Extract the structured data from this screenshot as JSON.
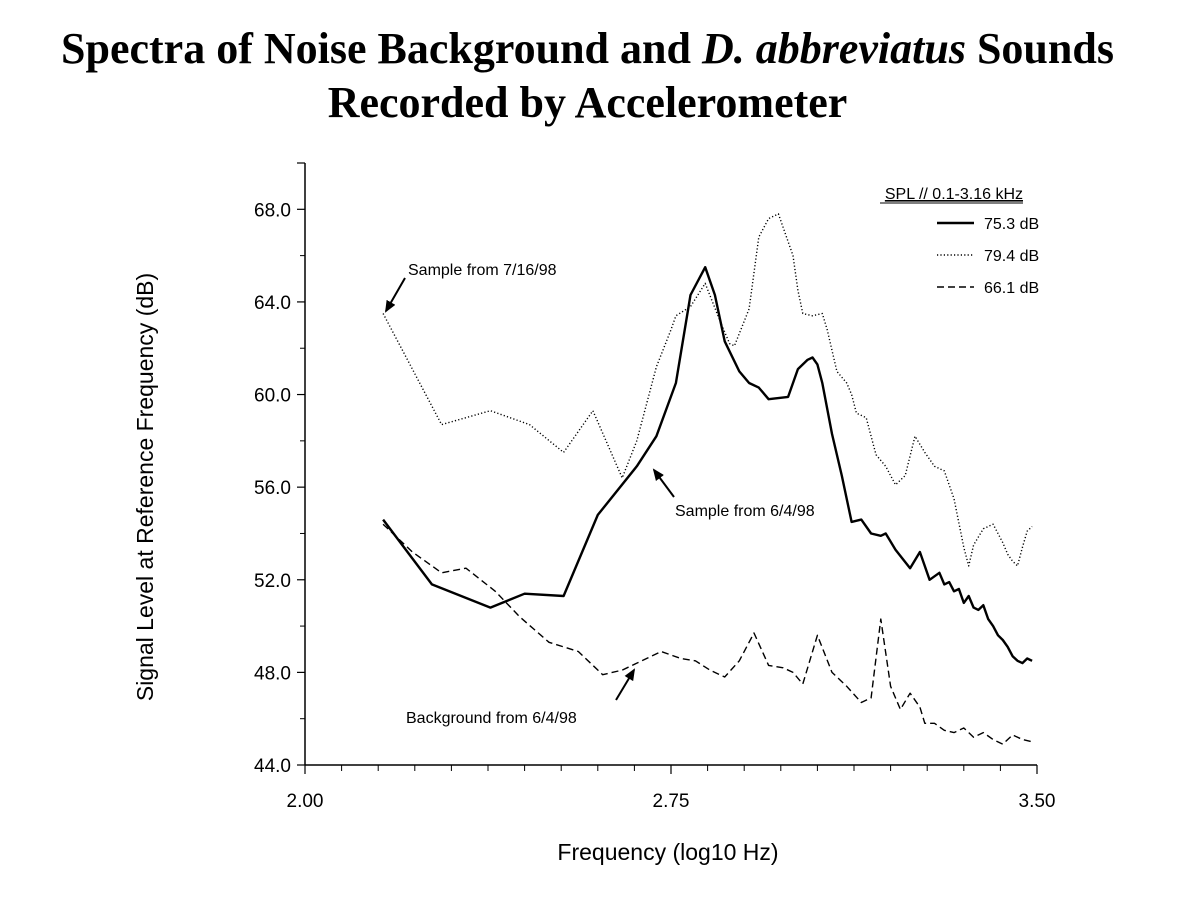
{
  "chart_data": {
    "type": "line",
    "title_part1": "Spectra of Noise Background and ",
    "title_species": "D. abbreviatus",
    "title_part2": " Sounds",
    "title_line2": "Recorded by Accelerometer",
    "xlabel": "Frequency (log10 Hz)",
    "ylabel": "Signal Level at Reference Frequency (dB)",
    "xlim": [
      2.0,
      3.5
    ],
    "ylim": [
      44.0,
      70.0
    ],
    "x_ticks": [
      "2.00",
      "2.75",
      "3.50"
    ],
    "x_tick_values": [
      2.0,
      2.75,
      3.5
    ],
    "y_ticks": [
      "44.0",
      "48.0",
      "52.0",
      "56.0",
      "60.0",
      "64.0",
      "68.0"
    ],
    "y_tick_values": [
      44,
      48,
      52,
      56,
      60,
      64,
      68
    ],
    "legend_title": "SPL // 0.1-3.16 kHz",
    "series": [
      {
        "name": "75.3 dB",
        "style": "solid",
        "x": [
          2.16,
          2.26,
          2.38,
          2.45,
          2.53,
          2.6,
          2.68,
          2.72,
          2.76,
          2.79,
          2.82,
          2.84,
          2.86,
          2.89,
          2.91,
          2.93,
          2.95,
          2.99,
          3.01,
          3.03,
          3.04,
          3.05,
          3.06,
          3.08,
          3.1,
          3.12,
          3.14,
          3.16,
          3.18,
          3.19,
          3.21,
          3.24,
          3.26,
          3.28,
          3.3,
          3.31,
          3.32,
          3.33,
          3.34,
          3.35,
          3.36,
          3.37,
          3.38,
          3.39,
          3.4,
          3.41,
          3.42,
          3.43,
          3.44,
          3.45,
          3.46,
          3.47,
          3.48,
          3.49
        ],
        "values": [
          54.6,
          51.8,
          50.8,
          51.4,
          51.3,
          54.8,
          56.9,
          58.2,
          60.5,
          64.3,
          65.5,
          64.3,
          62.3,
          61.0,
          60.5,
          60.3,
          59.8,
          59.9,
          61.1,
          61.5,
          61.6,
          61.3,
          60.5,
          58.3,
          56.5,
          54.5,
          54.6,
          54.0,
          53.9,
          54.0,
          53.3,
          52.5,
          53.2,
          52.0,
          52.3,
          51.8,
          51.9,
          51.5,
          51.6,
          51.0,
          51.3,
          50.8,
          50.7,
          50.9,
          50.3,
          50.0,
          49.6,
          49.4,
          49.1,
          48.7,
          48.5,
          48.4,
          48.6,
          48.5
        ]
      },
      {
        "name": "79.4 dB",
        "style": "dotted",
        "x": [
          2.16,
          2.28,
          2.38,
          2.46,
          2.53,
          2.59,
          2.65,
          2.68,
          2.72,
          2.75,
          2.76,
          2.79,
          2.82,
          2.85,
          2.87,
          2.88,
          2.91,
          2.93,
          2.95,
          2.97,
          3.0,
          3.01,
          3.02,
          3.04,
          3.06,
          3.07,
          3.09,
          3.11,
          3.12,
          3.13,
          3.15,
          3.17,
          3.19,
          3.21,
          3.23,
          3.25,
          3.27,
          3.29,
          3.31,
          3.33,
          3.35,
          3.36,
          3.37,
          3.39,
          3.41,
          3.42,
          3.43,
          3.44,
          3.45,
          3.46,
          3.47,
          3.48,
          3.49
        ],
        "values": [
          63.5,
          58.7,
          59.3,
          58.7,
          57.5,
          59.3,
          56.4,
          58.0,
          61.2,
          62.8,
          63.4,
          63.8,
          64.8,
          63.2,
          62.2,
          62.1,
          63.7,
          66.8,
          67.6,
          67.8,
          66.0,
          64.5,
          63.5,
          63.4,
          63.5,
          62.8,
          61.0,
          60.5,
          60.0,
          59.2,
          59.0,
          57.4,
          56.9,
          56.1,
          56.5,
          58.2,
          57.5,
          56.9,
          56.7,
          55.5,
          53.4,
          52.6,
          53.5,
          54.2,
          54.4,
          54.0,
          53.6,
          53.1,
          52.8,
          52.6,
          53.4,
          54.1,
          54.3
        ]
      },
      {
        "name": "66.1 dB",
        "style": "dashed",
        "x": [
          2.16,
          2.22,
          2.28,
          2.33,
          2.39,
          2.44,
          2.5,
          2.56,
          2.61,
          2.65,
          2.7,
          2.73,
          2.77,
          2.8,
          2.83,
          2.86,
          2.89,
          2.92,
          2.95,
          2.98,
          3.0,
          3.02,
          3.05,
          3.08,
          3.11,
          3.14,
          3.16,
          3.18,
          3.2,
          3.22,
          3.24,
          3.26,
          3.27,
          3.29,
          3.31,
          3.33,
          3.35,
          3.37,
          3.39,
          3.41,
          3.43,
          3.45,
          3.47,
          3.49
        ],
        "values": [
          54.4,
          53.2,
          52.3,
          52.5,
          51.5,
          50.4,
          49.3,
          48.9,
          47.9,
          48.1,
          48.6,
          48.9,
          48.6,
          48.5,
          48.1,
          47.8,
          48.5,
          49.7,
          48.3,
          48.2,
          48.0,
          47.5,
          49.6,
          48.0,
          47.4,
          46.7,
          46.9,
          50.3,
          47.4,
          46.4,
          47.1,
          46.5,
          45.8,
          45.8,
          45.5,
          45.4,
          45.6,
          45.2,
          45.4,
          45.1,
          44.9,
          45.3,
          45.1,
          45.0
        ]
      }
    ],
    "annotations": [
      {
        "name": "sample-7-16-98",
        "text": "Sample from 7/16/98",
        "target_x": 2.16,
        "target_y": 63.5
      },
      {
        "name": "sample-6-4-98",
        "text": "Sample from 6/4/98",
        "target_x": 2.71,
        "target_y": 57.5
      },
      {
        "name": "background-6-4-98",
        "text": "Background from 6/4/98",
        "target_x": 2.67,
        "target_y": 48.1
      }
    ],
    "legend_position": "top-right",
    "grid": false
  }
}
